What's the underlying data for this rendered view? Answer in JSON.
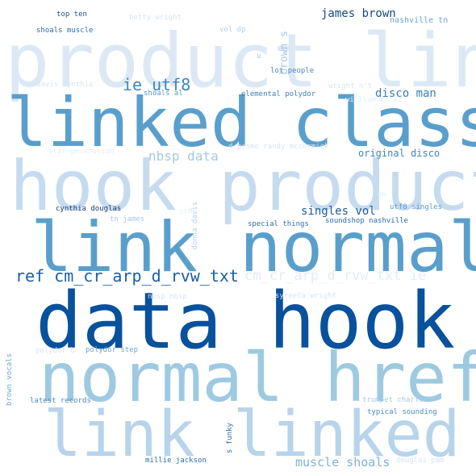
{
  "words": [
    {
      "text": "product link",
      "color": "#dce9f5"
    },
    {
      "text": "linked class",
      "color": "#5a9fcc"
    },
    {
      "text": "hook product",
      "color": "#c6dbef"
    },
    {
      "text": "link normal",
      "color": "#5a9fcc"
    },
    {
      "text": "data hook",
      "color": "#08519c"
    },
    {
      "text": "normal href",
      "color": "#9ecae1"
    },
    {
      "text": "link linked",
      "color": "#b7d4ea"
    },
    {
      "text": "ref cm_cr_arp_d_rvw_txt",
      "color": "#1a5fa8"
    },
    {
      "text": "cm_cr_arp_d_rvw_txt ie",
      "color": "#e3edf7"
    },
    {
      "text": "ie utf8",
      "color": "#3f84bd"
    },
    {
      "text": "nbsp data",
      "color": "#a6c9e4"
    },
    {
      "text": "disco man",
      "color": "#3c7fb8"
    },
    {
      "text": "james brown",
      "color": "#19497f"
    },
    {
      "text": "original disco",
      "color": "#3f84bd"
    },
    {
      "text": "singles vol",
      "color": "#1f5b9c"
    },
    {
      "text": "muscle shoals",
      "color": "#7eb3d8"
    },
    {
      "text": "brown s",
      "color": "#a6c9e4"
    },
    {
      "text": "top ten",
      "color": "#1a4f8c"
    },
    {
      "text": "betty wright",
      "color": "#d6e5f3"
    },
    {
      "text": "nashville tn",
      "color": "#6aa6d1"
    },
    {
      "text": "shoals muscle",
      "color": "#2a6cae"
    },
    {
      "text": "vol dp",
      "color": "#b3d2ea"
    },
    {
      "text": "u",
      "color": "#a6c9e4"
    },
    {
      "text": "lot people",
      "color": "#4b89c0"
    },
    {
      "text": "davis cynthia",
      "color": "#d6e5f3"
    },
    {
      "text": "shoals al",
      "color": "#5a9ac8"
    },
    {
      "text": "elemental polydor",
      "color": "#3e80b9"
    },
    {
      "text": "wright n't",
      "color": "#d6e5f3"
    },
    {
      "text": "william perez",
      "color": "#e3edf7"
    },
    {
      "text": "star generation",
      "color": "#e3edf7"
    },
    {
      "text": "d promo randy mccormick",
      "color": "#d6e5f3"
    },
    {
      "text": "cynthia douglas",
      "color": "#163e72"
    },
    {
      "text": "tn james",
      "color": "#a6c9e4"
    },
    {
      "text": "donna davis",
      "color": "#b3d2ea"
    },
    {
      "text": "utf8 singles",
      "color": "#5a9ac8"
    },
    {
      "text": "special things",
      "color": "#2e6fb0"
    },
    {
      "text": "soundshop nashville",
      "color": "#2a6cae"
    },
    {
      "text": "nbsp nbsp",
      "color": "#d6e5f3"
    },
    {
      "text": "syreeta wright",
      "color": "#d6e5f3"
    },
    {
      "text": "polydor b",
      "color": "#d6e5f3"
    },
    {
      "text": "polydor step",
      "color": "#6aa6d1"
    },
    {
      "text": "brown vocals",
      "color": "#6aa6d1"
    },
    {
      "text": "latest records",
      "color": "#4b89c0"
    },
    {
      "text": "trumpet charles",
      "color": "#a6c9e4"
    },
    {
      "text": "typical sounding",
      "color": "#4b89c0"
    },
    {
      "text": "s funky",
      "color": "#2e6fb0"
    },
    {
      "text": "millie jackson",
      "color": "#2a6cae"
    },
    {
      "text": "douglas pam",
      "color": "#d6e5f3"
    },
    {
      "text": "ou",
      "color": "#e3edf7"
    },
    {
      "text": "jim",
      "color": "#e3edf7"
    }
  ]
}
